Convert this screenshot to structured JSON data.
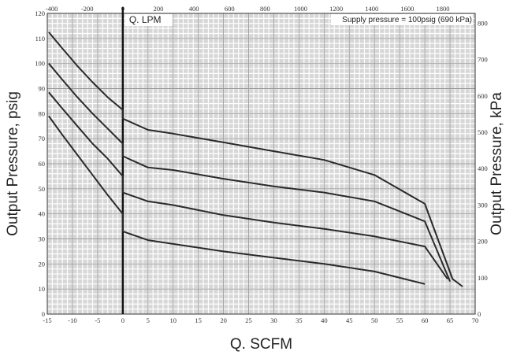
{
  "chart_data": {
    "type": "line",
    "title": "",
    "xlabel": "Q. SCFM",
    "ylabel": "Output Pressure, psig",
    "x_top_label": "Q. LPM",
    "y_right_label": "Output Pressure, kPa",
    "annotation": "Supply pressure = 100psig (690 kPa)",
    "xlim": [
      -15,
      70
    ],
    "ylim": [
      0,
      120
    ],
    "x_top_lim": [
      -425,
      1982
    ],
    "y_right_lim": [
      0,
      827
    ],
    "x_ticks": [
      -15,
      -10,
      -5,
      0,
      5,
      10,
      15,
      20,
      25,
      30,
      35,
      40,
      45,
      50,
      55,
      60,
      65,
      70
    ],
    "x_tick_labels": [
      "-15",
      "-10",
      "-5",
      "0",
      "5",
      "10",
      "15",
      "20",
      "25",
      "30",
      "35",
      "40",
      "45",
      "50",
      "55",
      "60",
      "65",
      "70"
    ],
    "y_ticks": [
      0,
      10,
      20,
      30,
      40,
      50,
      60,
      70,
      80,
      90,
      100,
      110,
      120
    ],
    "y_tick_labels": [
      "0",
      "10",
      "20",
      "30",
      "40",
      "50",
      "60",
      "70",
      "80",
      "90",
      "100",
      "110",
      "120"
    ],
    "x_top_ticks": [
      -400,
      -200,
      0,
      200,
      400,
      600,
      800,
      1000,
      1200,
      1400,
      1600,
      1800
    ],
    "x_top_tick_labels": [
      "-400",
      "-200",
      "0",
      "200",
      "400",
      "600",
      "800",
      "1000",
      "1200",
      "1400",
      "1600",
      "1800"
    ],
    "y_right_ticks": [
      0,
      100,
      200,
      300,
      400,
      500,
      600,
      700,
      800
    ],
    "y_right_tick_labels": [
      "0",
      "100",
      "200",
      "300",
      "400",
      "500",
      "600",
      "700",
      "800"
    ],
    "grid": true,
    "series": [
      {
        "x": [
          -14.7,
          -12,
          -9,
          -6,
          -3,
          0,
          0,
          5,
          10,
          20,
          30,
          40,
          50,
          60,
          65.5,
          67.5
        ],
        "y": [
          112.5,
          106,
          99,
          92.5,
          86.5,
          81.5,
          78,
          73.5,
          72,
          68.5,
          65,
          61.5,
          55.5,
          44,
          14,
          11
        ]
      },
      {
        "x": [
          -14.7,
          -12,
          -9,
          -6,
          -3,
          0,
          0,
          5,
          10,
          20,
          30,
          40,
          50,
          60,
          65
        ],
        "y": [
          100,
          93.5,
          86.5,
          80,
          74,
          68,
          63,
          58.5,
          57.5,
          54,
          51,
          48.5,
          45,
          37,
          13
        ]
      },
      {
        "x": [
          -14.7,
          -12,
          -9,
          -6,
          -3,
          0,
          0,
          5,
          10,
          20,
          30,
          40,
          50,
          60,
          64.5
        ],
        "y": [
          88.5,
          82,
          75,
          68,
          62,
          55,
          48.5,
          45,
          43.5,
          39.5,
          36.5,
          34,
          31,
          27,
          14
        ]
      },
      {
        "x": [
          -14.7,
          -12,
          -9,
          -6,
          -3,
          0,
          0,
          5,
          10,
          20,
          30,
          40,
          50,
          60
        ],
        "y": [
          79,
          71.5,
          63.5,
          55.5,
          47.5,
          40,
          33,
          29.5,
          28,
          25,
          22.5,
          20,
          17,
          12
        ]
      }
    ]
  }
}
